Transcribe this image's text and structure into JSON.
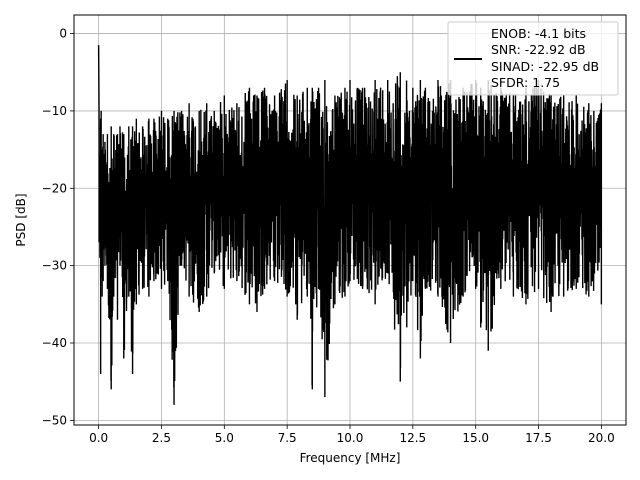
{
  "chart_data": {
    "type": "line",
    "xlabel": "Frequency [MHz]",
    "ylabel": "PSD [dB]",
    "xlim": [
      -0.98,
      20.98
    ],
    "ylim": [
      -50.6,
      2.4
    ],
    "xticks": [
      0.0,
      2.5,
      5.0,
      7.5,
      10.0,
      12.5,
      15.0,
      17.5,
      20.0
    ],
    "xtick_labels": [
      "0.0",
      "2.5",
      "5.0",
      "7.5",
      "10.0",
      "12.5",
      "15.0",
      "17.5",
      "20.0"
    ],
    "yticks": [
      0,
      -10,
      -20,
      -30,
      -40,
      -50
    ],
    "ytick_labels": [
      "0",
      "−10",
      "−20",
      "−30",
      "−40",
      "−50"
    ],
    "grid": true,
    "line_color": "#000000",
    "legend": {
      "placement": "upper right",
      "entries": [
        "ENOB: -4.1 bits",
        "SNR: -22.92 dB",
        "SINAD: -22.95 dB",
        "SFDR: 1.75"
      ]
    },
    "series": [
      {
        "color": "#000000",
        "x": [
          0.0,
          0.02,
          0.05,
          0.08,
          0.1,
          0.14,
          0.18,
          0.25,
          0.35,
          0.5,
          0.6,
          0.75,
          0.85,
          1.0,
          1.2,
          1.35,
          1.5,
          1.75,
          2.0,
          2.2,
          2.5,
          2.75,
          3.0,
          3.3,
          3.6,
          4.0,
          4.3,
          4.6,
          5.0,
          5.5,
          6.0,
          6.3,
          6.6,
          7.0,
          7.5,
          7.9,
          8.3,
          8.5,
          8.75,
          9.0,
          9.4,
          9.8,
          10.0,
          10.5,
          11.0,
          11.5,
          12.0,
          12.5,
          12.8,
          13.0,
          13.5,
          14.0,
          14.5,
          15.0,
          15.2,
          15.5,
          16.0,
          16.5,
          17.0,
          17.5,
          18.0,
          18.5,
          19.0,
          19.5,
          20.0
        ],
        "ymax": [
          -1.5,
          -12,
          -16,
          -11,
          -10,
          -15,
          -13,
          -14,
          -13,
          -12,
          -13,
          -13,
          -12,
          -13,
          -12,
          -12,
          -11,
          -12,
          -11,
          -11,
          -10,
          -11,
          -10,
          -10,
          -9,
          -10,
          -9,
          -10,
          -8,
          -9,
          -7,
          -8,
          -7,
          -8,
          -6,
          -8,
          -7,
          -7,
          -7,
          -6,
          -8,
          -7,
          -6,
          -7,
          -6,
          -6,
          -5,
          -7,
          -6,
          -7,
          -6,
          -6,
          -7,
          -6,
          -7,
          -6,
          -7,
          -8,
          -7,
          -6,
          -8,
          -8,
          -8,
          -9,
          -9
        ],
        "ymin": [
          -3,
          -27,
          -29,
          -44,
          -31,
          -34,
          -32,
          -30,
          -33,
          -46,
          -34,
          -37,
          -30,
          -42,
          -34,
          -44,
          -35,
          -33,
          -34,
          -32,
          -33,
          -32,
          -48,
          -30,
          -34,
          -36,
          -34,
          -31,
          -33,
          -32,
          -35,
          -36,
          -33,
          -32,
          -34,
          -37,
          -34,
          -46,
          -33,
          -47,
          -35,
          -34,
          -32,
          -33,
          -35,
          -31,
          -45,
          -32,
          -42,
          -33,
          -34,
          -40,
          -34,
          -33,
          -38,
          -41,
          -33,
          -34,
          -35,
          -33,
          -36,
          -34,
          -33,
          -34,
          -35
        ]
      }
    ]
  }
}
